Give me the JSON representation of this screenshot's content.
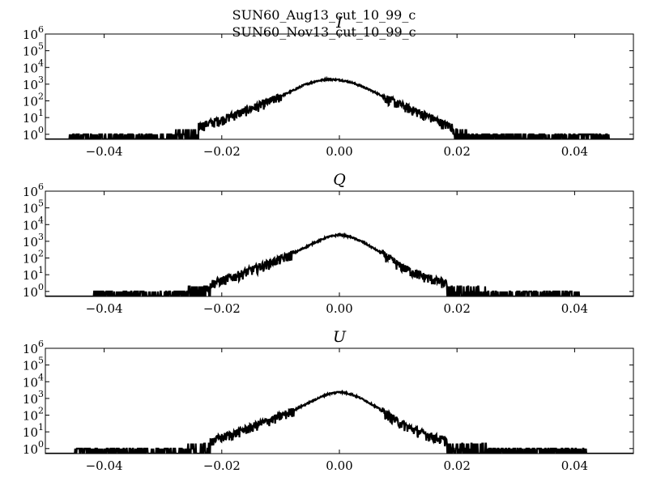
{
  "figure": {
    "suptitle_lines": [
      "SUN60_Aug13_cut_10_99_c",
      "SUN60_Nov13_cut_10_99_c"
    ]
  },
  "chart_data": [
    {
      "type": "line",
      "title": "I",
      "xlim": [
        -0.05,
        0.05
      ],
      "ylim": [
        0.5,
        1000000
      ],
      "yscale": "log",
      "grid": false,
      "xticks": [
        -0.04,
        -0.02,
        0.0,
        0.02,
        0.04
      ],
      "xtick_labels": [
        "−0.04",
        "−0.02",
        "0.00",
        "0.02",
        "0.04"
      ],
      "yticks": [
        1,
        10,
        100,
        1000,
        10000,
        100000,
        1000000
      ],
      "ytick_exponents": [
        "0",
        "1",
        "2",
        "3",
        "4",
        "5",
        "6"
      ],
      "series": [
        {
          "color": "#000000",
          "peak_x": -0.002,
          "peak_count": 2000,
          "x": [
            -0.046,
            -0.04,
            -0.034,
            -0.028,
            -0.024,
            -0.02,
            -0.017,
            -0.014,
            -0.011,
            -0.008,
            -0.006,
            -0.004,
            -0.002,
            0.0,
            0.002,
            0.004,
            0.006,
            0.008,
            0.01,
            0.012,
            0.014,
            0.016,
            0.018,
            0.022,
            0.028,
            0.034,
            0.04,
            0.046
          ],
          "y": [
            1,
            1,
            1,
            1.5,
            3,
            8,
            20,
            50,
            130,
            400,
            900,
            1500,
            2000,
            1800,
            1300,
            700,
            330,
            150,
            70,
            35,
            18,
            9,
            4,
            1.5,
            1,
            1,
            1,
            1
          ]
        }
      ]
    },
    {
      "type": "line",
      "title": "Q",
      "xlim": [
        -0.05,
        0.05
      ],
      "ylim": [
        0.5,
        1000000
      ],
      "yscale": "log",
      "grid": false,
      "xticks": [
        -0.04,
        -0.02,
        0.0,
        0.02,
        0.04
      ],
      "xtick_labels": [
        "−0.04",
        "−0.02",
        "0.00",
        "0.02",
        "0.04"
      ],
      "yticks": [
        1,
        10,
        100,
        1000,
        10000,
        100000,
        1000000
      ],
      "ytick_exponents": [
        "0",
        "1",
        "2",
        "3",
        "4",
        "5",
        "6"
      ],
      "series": [
        {
          "color": "#000000",
          "peak_x": 0.0,
          "peak_count": 2500,
          "x": [
            -0.042,
            -0.038,
            -0.032,
            -0.026,
            -0.022,
            -0.018,
            -0.015,
            -0.012,
            -0.01,
            -0.008,
            -0.006,
            -0.004,
            -0.002,
            0.0,
            0.002,
            0.004,
            0.006,
            0.008,
            0.01,
            0.012,
            0.014,
            0.017,
            0.02,
            0.025,
            0.03,
            0.035,
            0.041
          ],
          "y": [
            1,
            1,
            1,
            1.5,
            3,
            8,
            20,
            50,
            90,
            180,
            400,
            900,
            1800,
            2500,
            1800,
            900,
            350,
            130,
            40,
            18,
            9,
            4,
            2,
            1.5,
            1,
            1,
            1
          ]
        }
      ]
    },
    {
      "type": "line",
      "title": "U",
      "xlim": [
        -0.05,
        0.05
      ],
      "ylim": [
        0.5,
        1000000
      ],
      "yscale": "log",
      "grid": false,
      "xticks": [
        -0.04,
        -0.02,
        0.0,
        0.02,
        0.04
      ],
      "xtick_labels": [
        "−0.04",
        "−0.02",
        "0.00",
        "0.02",
        "0.04"
      ],
      "yticks": [
        1,
        10,
        100,
        1000,
        10000,
        100000,
        1000000
      ],
      "ytick_exponents": [
        "0",
        "1",
        "2",
        "3",
        "4",
        "5",
        "6"
      ],
      "series": [
        {
          "color": "#000000",
          "peak_x": 0.0,
          "peak_count": 2500,
          "x": [
            -0.045,
            -0.038,
            -0.032,
            -0.026,
            -0.022,
            -0.018,
            -0.015,
            -0.012,
            -0.01,
            -0.008,
            -0.006,
            -0.004,
            -0.002,
            0.0,
            0.002,
            0.004,
            0.006,
            0.008,
            0.01,
            0.012,
            0.014,
            0.017,
            0.02,
            0.025,
            0.03,
            0.036,
            0.042
          ],
          "y": [
            1,
            1,
            1,
            1.5,
            3,
            8,
            20,
            50,
            90,
            180,
            400,
            900,
            1800,
            2500,
            1800,
            900,
            350,
            130,
            40,
            18,
            9,
            4,
            2,
            1.5,
            1,
            1,
            1
          ]
        }
      ]
    }
  ]
}
